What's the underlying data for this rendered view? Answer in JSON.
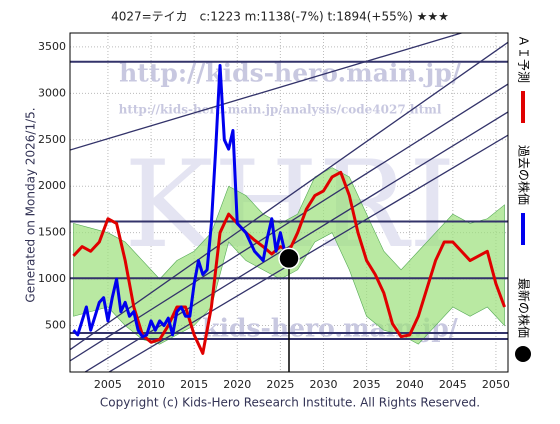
{
  "chart_data": {
    "type": "line",
    "title": "4027=テイカ　c:1223  m:1138(-7%)  t:1894(+55%)  ★★★",
    "side_text": "Generated on Monday 2026/1/5.",
    "footer": "Copyright (c) Kids-Hero Research Institute. All Rights Reserved.",
    "watermarks": [
      "http://kids-hero.main.jp/",
      "http://kids-hero.main.jp/analysis/code4027.html",
      "KHRI",
      "kids-hero.main.jp/"
    ],
    "xlim": [
      2000.6,
      2051.4
    ],
    "xticks": [
      2005,
      2010,
      2015,
      2020,
      2025,
      2030,
      2035,
      2040,
      2045,
      2050
    ],
    "ylim": [
      0,
      3650
    ],
    "yticks": [
      500,
      1000,
      1500,
      2000,
      2500,
      3000,
      3500
    ],
    "grid": true,
    "band": {
      "color": "#9be07a",
      "x": [
        2001,
        2003,
        2005,
        2007,
        2009,
        2011,
        2013,
        2015,
        2017,
        2019,
        2021,
        2023,
        2025,
        2027,
        2029,
        2031,
        2033,
        2035,
        2037,
        2039,
        2041,
        2043,
        2045,
        2047,
        2049,
        2051
      ],
      "upper": [
        1600,
        1550,
        1500,
        1400,
        1200,
        1000,
        1200,
        1300,
        1500,
        2000,
        1900,
        1700,
        1600,
        1700,
        2100,
        2200,
        2100,
        1700,
        1300,
        1100,
        1300,
        1500,
        1700,
        1600,
        1650,
        1800
      ],
      "lower": [
        600,
        650,
        700,
        500,
        350,
        300,
        400,
        500,
        700,
        1400,
        1200,
        1100,
        1000,
        1100,
        1400,
        1500,
        1100,
        600,
        450,
        400,
        300,
        500,
        700,
        600,
        700,
        500
      ]
    },
    "hlines": [
      3340,
      1620,
      1010,
      420,
      355
    ],
    "trend_lines": [
      {
        "x": [
          2000.6,
          2051.4
        ],
        "y": [
          2390,
          3800
        ]
      },
      {
        "x": [
          2000.6,
          2051.4
        ],
        "y": [
          240,
          3550
        ]
      },
      {
        "x": [
          2000.6,
          2051.4
        ],
        "y": [
          120,
          3100
        ]
      },
      {
        "x": [
          2000.6,
          2051.4
        ],
        "y": [
          -100,
          2800
        ]
      },
      {
        "x": [
          2000.6,
          2051.4
        ],
        "y": [
          -250,
          2550
        ]
      }
    ],
    "series": [
      {
        "name": "ＡＩ予測",
        "color": "#e00000",
        "x": [
          2001,
          2002,
          2003,
          2004,
          2005,
          2006,
          2007,
          2008,
          2009,
          2010,
          2011,
          2012,
          2013,
          2014,
          2015,
          2016,
          2017,
          2018,
          2019,
          2020,
          2021,
          2022,
          2023,
          2024,
          2025,
          2026,
          2027,
          2028,
          2029,
          2030,
          2031,
          2032,
          2033,
          2034,
          2035,
          2036,
          2037,
          2038,
          2039,
          2040,
          2041,
          2042,
          2043,
          2044,
          2045,
          2046,
          2047,
          2048,
          2049,
          2050,
          2051
        ],
        "values": [
          1250,
          1350,
          1300,
          1400,
          1650,
          1600,
          1200,
          700,
          400,
          320,
          350,
          500,
          700,
          700,
          400,
          200,
          700,
          1500,
          1700,
          1600,
          1500,
          1420,
          1350,
          1270,
          1350,
          1300,
          1500,
          1750,
          1900,
          1950,
          2100,
          2150,
          1900,
          1500,
          1200,
          1050,
          850,
          520,
          380,
          400,
          600,
          900,
          1200,
          1400,
          1400,
          1300,
          1200,
          1250,
          1300,
          950,
          700
        ]
      },
      {
        "name": "過去の株価",
        "color": "#0000ee",
        "x": [
          2001,
          2001.5,
          2002,
          2002.5,
          2003,
          2003.5,
          2004,
          2004.5,
          2005,
          2005.5,
          2006,
          2006.5,
          2007,
          2007.5,
          2008,
          2008.5,
          2009,
          2009.5,
          2010,
          2010.5,
          2011,
          2011.5,
          2012,
          2012.5,
          2013,
          2013.5,
          2014,
          2014.5,
          2015,
          2015.5,
          2016,
          2016.5,
          2017,
          2017.5,
          2018,
          2018.5,
          2019,
          2019.5,
          2020,
          2020.5,
          2021,
          2021.5,
          2022,
          2022.5,
          2023,
          2023.5,
          2024,
          2024.5,
          2025,
          2025.5
        ],
        "values": [
          450,
          400,
          550,
          700,
          450,
          600,
          750,
          800,
          550,
          800,
          1000,
          650,
          750,
          600,
          650,
          450,
          380,
          400,
          550,
          450,
          550,
          500,
          580,
          400,
          650,
          700,
          600,
          600,
          950,
          1200,
          1050,
          1100,
          1600,
          2400,
          3300,
          2500,
          2400,
          2600,
          1600,
          1550,
          1500,
          1400,
          1300,
          1250,
          1200,
          1450,
          1650,
          1300,
          1500,
          1300
        ]
      }
    ],
    "latest": {
      "name": "最新の株価",
      "x": 2026,
      "value": 1223
    }
  }
}
